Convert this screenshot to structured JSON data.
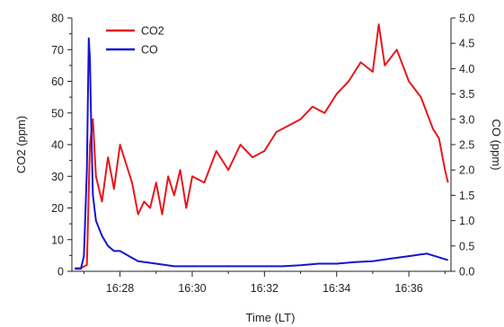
{
  "chart_data": {
    "type": "line",
    "xlabel": "Time (LT)",
    "ylabel_left": "CO2 (ppm)",
    "ylabel_right": "CO (ppm)",
    "x_ticks": [
      "16:28",
      "16:30",
      "16:32",
      "16:34",
      "16:36"
    ],
    "x_range": [
      "16:26:40",
      "16:37:10"
    ],
    "y_left_range": [
      0,
      80
    ],
    "y_left_ticks": [
      "0",
      "10",
      "20",
      "30",
      "40",
      "50",
      "60",
      "70",
      "80"
    ],
    "y_right_range": [
      0,
      5
    ],
    "y_right_ticks": [
      "0.0",
      "0.5",
      "1.0",
      "1.5",
      "2.0",
      "2.5",
      "3.0",
      "3.5",
      "4.0",
      "4.5",
      "5.0"
    ],
    "grid": false,
    "legend_position": "top-left",
    "series": [
      {
        "name": "CO2",
        "axis": "left",
        "color": "#e8171c",
        "x": [
          "16:26:45",
          "16:26:55",
          "16:27:05",
          "16:27:10",
          "16:27:15",
          "16:27:20",
          "16:27:30",
          "16:27:40",
          "16:27:50",
          "16:28:00",
          "16:28:10",
          "16:28:20",
          "16:28:30",
          "16:28:40",
          "16:28:50",
          "16:29:00",
          "16:29:10",
          "16:29:20",
          "16:29:30",
          "16:29:40",
          "16:29:50",
          "16:30:00",
          "16:30:20",
          "16:30:40",
          "16:31:00",
          "16:31:20",
          "16:31:40",
          "16:32:00",
          "16:32:20",
          "16:32:40",
          "16:33:00",
          "16:33:20",
          "16:33:40",
          "16:34:00",
          "16:34:20",
          "16:34:40",
          "16:35:00",
          "16:35:10",
          "16:35:20",
          "16:35:40",
          "16:36:00",
          "16:36:20",
          "16:36:40",
          "16:36:50",
          "16:37:00",
          "16:37:05"
        ],
        "values": [
          1,
          1,
          2,
          40,
          48,
          30,
          22,
          36,
          26,
          40,
          34,
          28,
          18,
          22,
          20,
          28,
          18,
          30,
          24,
          32,
          20,
          30,
          28,
          38,
          32,
          40,
          36,
          38,
          44,
          46,
          48,
          52,
          50,
          56,
          60,
          66,
          63,
          78,
          65,
          70,
          60,
          55,
          45,
          42,
          32,
          28
        ]
      },
      {
        "name": "CO",
        "axis": "right",
        "color": "#1414d2",
        "x": [
          "16:26:45",
          "16:26:55",
          "16:27:00",
          "16:27:05",
          "16:27:08",
          "16:27:10",
          "16:27:12",
          "16:27:15",
          "16:27:20",
          "16:27:30",
          "16:27:40",
          "16:27:50",
          "16:28:00",
          "16:28:15",
          "16:28:30",
          "16:29:00",
          "16:29:30",
          "16:30:00",
          "16:30:30",
          "16:31:00",
          "16:31:30",
          "16:32:00",
          "16:32:30",
          "16:33:00",
          "16:33:30",
          "16:34:00",
          "16:34:30",
          "16:35:00",
          "16:35:30",
          "16:36:00",
          "16:36:30",
          "16:37:05"
        ],
        "values": [
          0.05,
          0.05,
          0.3,
          2.0,
          4.6,
          4.2,
          3.0,
          1.5,
          1.0,
          0.7,
          0.5,
          0.4,
          0.4,
          0.3,
          0.2,
          0.15,
          0.1,
          0.1,
          0.1,
          0.1,
          0.1,
          0.1,
          0.1,
          0.12,
          0.15,
          0.15,
          0.18,
          0.2,
          0.25,
          0.3,
          0.35,
          0.22
        ]
      }
    ]
  }
}
